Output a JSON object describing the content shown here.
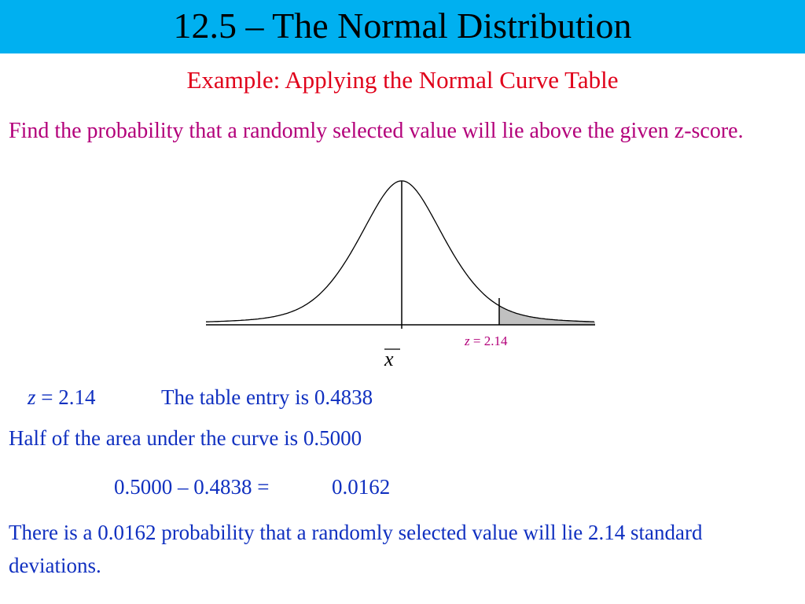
{
  "header": {
    "title": "12.5 – The Normal Distribution"
  },
  "subtitle": "Example: Applying the Normal Curve Table",
  "prompt": "Find the probability that a randomly selected value will lie above the given z-score.",
  "diagram": {
    "z_symbol": "z",
    "z_label": "= 2.14",
    "mean_label": "x"
  },
  "work": {
    "line1": {
      "z_symbol": "z",
      "z_value": "= 2.14",
      "entry": "The table entry is 0.4838"
    },
    "line2": "Half of the area under the curve  is 0.5000",
    "line3": {
      "expression": "0.5000 – 0.4838 =",
      "result": "0.0162"
    },
    "conclusion": "There is a 0.0162 probability that a randomly selected value will lie 2.14 standard deviations."
  }
}
